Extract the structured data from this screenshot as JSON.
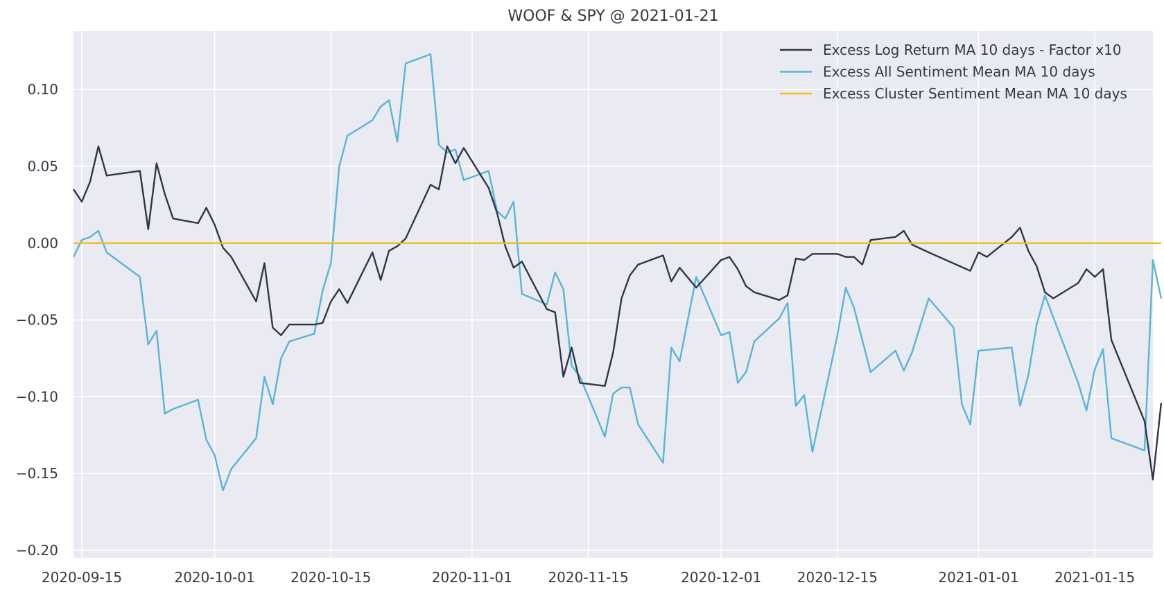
{
  "chart_data": {
    "type": "line",
    "title": "WOOF & SPY @ 2021-01-21",
    "xlabel": "",
    "ylabel": "",
    "x_axis_type": "date",
    "xlim": [
      "2020-09-14",
      "2021-01-22"
    ],
    "ylim": [
      -0.205,
      0.138
    ],
    "grid": true,
    "legend_position": "top-right",
    "x_ticks": [
      "2020-09-15",
      "2020-10-01",
      "2020-10-15",
      "2020-11-01",
      "2020-11-15",
      "2020-12-01",
      "2020-12-15",
      "2021-01-01",
      "2021-01-15"
    ],
    "y_ticks": [
      0.1,
      0.05,
      0.0,
      -0.05,
      -0.1,
      -0.15,
      -0.2
    ],
    "y_tick_labels": [
      "0.10",
      "0.05",
      "0.00",
      "−0.05",
      "−0.10",
      "−0.15",
      "−0.20"
    ],
    "series": [
      {
        "name": "Excess Log Return MA 10 days - Factor x10",
        "color": "#2e3745",
        "points": [
          [
            "2020-09-14",
            0.035
          ],
          [
            "2020-09-15",
            0.027
          ],
          [
            "2020-09-16",
            0.04
          ],
          [
            "2020-09-17",
            0.063
          ],
          [
            "2020-09-18",
            0.044
          ],
          [
            "2020-09-22",
            0.047
          ],
          [
            "2020-09-23",
            0.009
          ],
          [
            "2020-09-24",
            0.052
          ],
          [
            "2020-09-25",
            0.032
          ],
          [
            "2020-09-26",
            0.016
          ],
          [
            "2020-09-29",
            0.013
          ],
          [
            "2020-09-30",
            0.023
          ],
          [
            "2020-10-01",
            0.012
          ],
          [
            "2020-10-02",
            -0.003
          ],
          [
            "2020-10-03",
            -0.009
          ],
          [
            "2020-10-06",
            -0.038
          ],
          [
            "2020-10-07",
            -0.013
          ],
          [
            "2020-10-08",
            -0.055
          ],
          [
            "2020-10-09",
            -0.06
          ],
          [
            "2020-10-10",
            -0.053
          ],
          [
            "2020-10-13",
            -0.053
          ],
          [
            "2020-10-14",
            -0.052
          ],
          [
            "2020-10-15",
            -0.038
          ],
          [
            "2020-10-16",
            -0.03
          ],
          [
            "2020-10-17",
            -0.039
          ],
          [
            "2020-10-20",
            -0.006
          ],
          [
            "2020-10-21",
            -0.024
          ],
          [
            "2020-10-22",
            -0.005
          ],
          [
            "2020-10-23",
            -0.002
          ],
          [
            "2020-10-24",
            0.003
          ],
          [
            "2020-10-27",
            0.038
          ],
          [
            "2020-10-28",
            0.035
          ],
          [
            "2020-10-29",
            0.063
          ],
          [
            "2020-10-30",
            0.052
          ],
          [
            "2020-10-31",
            0.062
          ],
          [
            "2020-11-03",
            0.036
          ],
          [
            "2020-11-04",
            0.02
          ],
          [
            "2020-11-05",
            -0.002
          ],
          [
            "2020-11-06",
            -0.016
          ],
          [
            "2020-11-07",
            -0.012
          ],
          [
            "2020-11-10",
            -0.043
          ],
          [
            "2020-11-11",
            -0.045
          ],
          [
            "2020-11-12",
            -0.087
          ],
          [
            "2020-11-13",
            -0.068
          ],
          [
            "2020-11-14",
            -0.091
          ],
          [
            "2020-11-17",
            -0.093
          ],
          [
            "2020-11-18",
            -0.071
          ],
          [
            "2020-11-19",
            -0.036
          ],
          [
            "2020-11-20",
            -0.021
          ],
          [
            "2020-11-21",
            -0.014
          ],
          [
            "2020-11-24",
            -0.008
          ],
          [
            "2020-11-25",
            -0.025
          ],
          [
            "2020-11-26",
            -0.016
          ],
          [
            "2020-11-28",
            -0.029
          ],
          [
            "2020-12-01",
            -0.011
          ],
          [
            "2020-12-02",
            -0.009
          ],
          [
            "2020-12-03",
            -0.017
          ],
          [
            "2020-12-04",
            -0.028
          ],
          [
            "2020-12-05",
            -0.032
          ],
          [
            "2020-12-08",
            -0.037
          ],
          [
            "2020-12-09",
            -0.034
          ],
          [
            "2020-12-10",
            -0.01
          ],
          [
            "2020-12-11",
            -0.011
          ],
          [
            "2020-12-12",
            -0.007
          ],
          [
            "2020-12-15",
            -0.007
          ],
          [
            "2020-12-16",
            -0.009
          ],
          [
            "2020-12-17",
            -0.009
          ],
          [
            "2020-12-18",
            -0.014
          ],
          [
            "2020-12-19",
            0.002
          ],
          [
            "2020-12-22",
            0.004
          ],
          [
            "2020-12-23",
            0.008
          ],
          [
            "2020-12-24",
            -0.001
          ],
          [
            "2020-12-26",
            -0.006
          ],
          [
            "2020-12-31",
            -0.018
          ],
          [
            "2021-01-01",
            -0.006
          ],
          [
            "2021-01-02",
            -0.009
          ],
          [
            "2021-01-05",
            0.004
          ],
          [
            "2021-01-06",
            0.01
          ],
          [
            "2021-01-07",
            -0.005
          ],
          [
            "2021-01-08",
            -0.015
          ],
          [
            "2021-01-09",
            -0.032
          ],
          [
            "2021-01-10",
            -0.036
          ],
          [
            "2021-01-13",
            -0.026
          ],
          [
            "2021-01-14",
            -0.017
          ],
          [
            "2021-01-15",
            -0.022
          ],
          [
            "2021-01-16",
            -0.017
          ],
          [
            "2021-01-17",
            -0.063
          ],
          [
            "2021-01-21",
            -0.116
          ],
          [
            "2021-01-22",
            -0.154
          ],
          [
            "2021-01-23",
            -0.104
          ]
        ]
      },
      {
        "name": "Excess All Sentiment Mean MA 10 days",
        "color": "#5ab4d4",
        "points": [
          [
            "2020-09-14",
            -0.009
          ],
          [
            "2020-09-15",
            0.002
          ],
          [
            "2020-09-16",
            0.004
          ],
          [
            "2020-09-17",
            0.008
          ],
          [
            "2020-09-18",
            -0.006
          ],
          [
            "2020-09-22",
            -0.022
          ],
          [
            "2020-09-23",
            -0.066
          ],
          [
            "2020-09-24",
            -0.057
          ],
          [
            "2020-09-25",
            -0.111
          ],
          [
            "2020-09-26",
            -0.108
          ],
          [
            "2020-09-29",
            -0.102
          ],
          [
            "2020-09-30",
            -0.128
          ],
          [
            "2020-10-01",
            -0.138
          ],
          [
            "2020-10-02",
            -0.161
          ],
          [
            "2020-10-03",
            -0.147
          ],
          [
            "2020-10-06",
            -0.127
          ],
          [
            "2020-10-07",
            -0.087
          ],
          [
            "2020-10-08",
            -0.105
          ],
          [
            "2020-10-09",
            -0.075
          ],
          [
            "2020-10-10",
            -0.064
          ],
          [
            "2020-10-13",
            -0.059
          ],
          [
            "2020-10-14",
            -0.031
          ],
          [
            "2020-10-15",
            -0.013
          ],
          [
            "2020-10-16",
            0.05
          ],
          [
            "2020-10-17",
            0.07
          ],
          [
            "2020-10-20",
            0.08
          ],
          [
            "2020-10-21",
            0.089
          ],
          [
            "2020-10-22",
            0.093
          ],
          [
            "2020-10-23",
            0.066
          ],
          [
            "2020-10-24",
            0.117
          ],
          [
            "2020-10-27",
            0.123
          ],
          [
            "2020-10-28",
            0.064
          ],
          [
            "2020-10-29",
            0.059
          ],
          [
            "2020-10-30",
            0.061
          ],
          [
            "2020-10-31",
            0.041
          ],
          [
            "2020-11-03",
            0.047
          ],
          [
            "2020-11-04",
            0.021
          ],
          [
            "2020-11-05",
            0.016
          ],
          [
            "2020-11-06",
            0.027
          ],
          [
            "2020-11-07",
            -0.033
          ],
          [
            "2020-11-10",
            -0.04
          ],
          [
            "2020-11-11",
            -0.019
          ],
          [
            "2020-11-12",
            -0.03
          ],
          [
            "2020-11-13",
            -0.08
          ],
          [
            "2020-11-14",
            -0.087
          ],
          [
            "2020-11-17",
            -0.126
          ],
          [
            "2020-11-18",
            -0.098
          ],
          [
            "2020-11-19",
            -0.094
          ],
          [
            "2020-11-20",
            -0.094
          ],
          [
            "2020-11-21",
            -0.118
          ],
          [
            "2020-11-24",
            -0.143
          ],
          [
            "2020-11-25",
            -0.068
          ],
          [
            "2020-11-26",
            -0.077
          ],
          [
            "2020-11-28",
            -0.022
          ],
          [
            "2020-12-01",
            -0.06
          ],
          [
            "2020-12-02",
            -0.058
          ],
          [
            "2020-12-03",
            -0.091
          ],
          [
            "2020-12-04",
            -0.084
          ],
          [
            "2020-12-05",
            -0.064
          ],
          [
            "2020-12-08",
            -0.049
          ],
          [
            "2020-12-09",
            -0.039
          ],
          [
            "2020-12-10",
            -0.106
          ],
          [
            "2020-12-11",
            -0.099
          ],
          [
            "2020-12-12",
            -0.136
          ],
          [
            "2020-12-15",
            -0.06
          ],
          [
            "2020-12-16",
            -0.029
          ],
          [
            "2020-12-17",
            -0.042
          ],
          [
            "2020-12-19",
            -0.084
          ],
          [
            "2020-12-22",
            -0.07
          ],
          [
            "2020-12-23",
            -0.083
          ],
          [
            "2020-12-24",
            -0.071
          ],
          [
            "2020-12-26",
            -0.036
          ],
          [
            "2020-12-29",
            -0.055
          ],
          [
            "2020-12-30",
            -0.105
          ],
          [
            "2020-12-31",
            -0.118
          ],
          [
            "2021-01-01",
            -0.07
          ],
          [
            "2021-01-05",
            -0.068
          ],
          [
            "2021-01-06",
            -0.106
          ],
          [
            "2021-01-07",
            -0.086
          ],
          [
            "2021-01-08",
            -0.053
          ],
          [
            "2021-01-09",
            -0.034
          ],
          [
            "2021-01-13",
            -0.091
          ],
          [
            "2021-01-14",
            -0.109
          ],
          [
            "2021-01-15",
            -0.082
          ],
          [
            "2021-01-16",
            -0.069
          ],
          [
            "2021-01-17",
            -0.127
          ],
          [
            "2021-01-21",
            -0.135
          ],
          [
            "2021-01-22",
            -0.011
          ],
          [
            "2021-01-23",
            -0.036
          ]
        ]
      },
      {
        "name": "Excess Cluster Sentiment Mean MA 10 days",
        "color": "#f2bd1d",
        "points": [
          [
            "2020-09-14",
            0.0
          ],
          [
            "2021-01-23",
            0.0
          ]
        ]
      }
    ]
  }
}
